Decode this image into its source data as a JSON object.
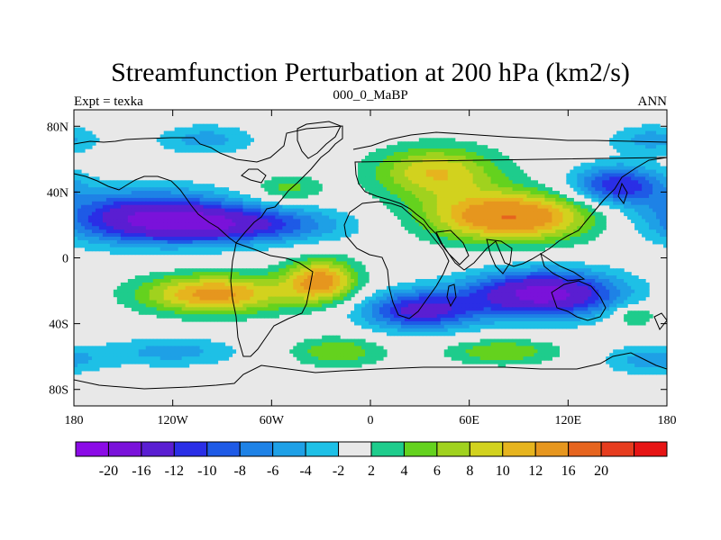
{
  "title": "Streamfunction Perturbation at 200 hPa (km2/s)",
  "left_string": "Expt = texka",
  "center_string": "000_0_MaBP",
  "right_string": "ANN",
  "y_ticks": [
    {
      "label": "80N",
      "lat": 80
    },
    {
      "label": "40N",
      "lat": 40
    },
    {
      "label": "0",
      "lat": 0
    },
    {
      "label": "40S",
      "lat": -40
    },
    {
      "label": "80S",
      "lat": -80
    }
  ],
  "x_ticks": [
    {
      "label": "180",
      "lon": -180
    },
    {
      "label": "120W",
      "lon": -120
    },
    {
      "label": "60W",
      "lon": -60
    },
    {
      "label": "0",
      "lon": 0
    },
    {
      "label": "60E",
      "lon": 60
    },
    {
      "label": "120E",
      "lon": 120
    },
    {
      "label": "180",
      "lon": 180
    }
  ],
  "colorbar": {
    "colors": [
      "#8b0be6",
      "#7a12da",
      "#5a1ed2",
      "#2a2ee6",
      "#1e5ae6",
      "#1e82e6",
      "#1ea0e6",
      "#1ec0e6",
      "#e8e8e8",
      "#1ecc8c",
      "#64d21e",
      "#a0d21e",
      "#d2d21e",
      "#e6b41e",
      "#e6961e",
      "#e6641e",
      "#e63c1e",
      "#e61414"
    ],
    "labels": [
      "-20",
      "-16",
      "-12",
      "-10",
      "-8",
      "-6",
      "-4",
      "-2",
      "2",
      "4",
      "6",
      "8",
      "10",
      "12",
      "16",
      "20"
    ]
  },
  "chart_data": {
    "type": "heatmap",
    "title": "Streamfunction Perturbation at 200 hPa (km2/s)",
    "projection": "cylindrical equidistant",
    "lon_range": [
      -180,
      180
    ],
    "lat_range": [
      -90,
      90
    ],
    "contour_levels": [
      -20,
      -16,
      -12,
      -10,
      -8,
      -6,
      -4,
      -2,
      2,
      4,
      6,
      8,
      10,
      12,
      16,
      20
    ],
    "features": [
      {
        "name": "north-pacific-low",
        "lon": -135,
        "lat": 25,
        "lon_radius": 55,
        "lat_radius": 16,
        "value": -14
      },
      {
        "name": "north-atlantic-low",
        "lon": -80,
        "lat": 20,
        "lon_radius": 60,
        "lat_radius": 11,
        "value": -11
      },
      {
        "name": "west-pacific-low",
        "lon": 150,
        "lat": 44,
        "lon_radius": 28,
        "lat_radius": 12,
        "value": -12
      },
      {
        "name": "asian-high",
        "lon": 85,
        "lat": 25,
        "lon_radius": 50,
        "lat_radius": 15,
        "value": 16
      },
      {
        "name": "eurasian-ridge",
        "lon": 40,
        "lat": 52,
        "lon_radius": 38,
        "lat_radius": 16,
        "value": 10
      },
      {
        "name": "south-pacific-high",
        "lon": -95,
        "lat": -22,
        "lon_radius": 45,
        "lat_radius": 12,
        "value": 13
      },
      {
        "name": "south-atlantic-high",
        "lon": -30,
        "lat": -14,
        "lon_radius": 22,
        "lat_radius": 13,
        "value": 13
      },
      {
        "name": "indian-ocean-low",
        "lon": 105,
        "lat": -22,
        "lon_radius": 45,
        "lat_radius": 14,
        "value": -18
      },
      {
        "name": "south-africa-low",
        "lon": 30,
        "lat": -32,
        "lon_radius": 35,
        "lat_radius": 12,
        "value": -13
      },
      {
        "name": "southern-ocean-high-1",
        "lon": -20,
        "lat": -57,
        "lon_radius": 28,
        "lat_radius": 9,
        "value": 6
      },
      {
        "name": "southern-ocean-high-2",
        "lon": 80,
        "lat": -57,
        "lon_radius": 35,
        "lat_radius": 8,
        "value": 6
      },
      {
        "name": "southern-ocean-low-1",
        "lon": -120,
        "lat": -57,
        "lon_radius": 40,
        "lat_radius": 9,
        "value": -5
      },
      {
        "name": "southern-ocean-low-2",
        "lon": 170,
        "lat": -62,
        "lon_radius": 30,
        "lat_radius": 9,
        "value": -5
      },
      {
        "name": "arctic-low-west",
        "lon": -100,
        "lat": 72,
        "lon_radius": 30,
        "lat_radius": 9,
        "value": -5
      },
      {
        "name": "arctic-low-east",
        "lon": 170,
        "lat": 72,
        "lon_radius": 25,
        "lat_radius": 9,
        "value": -5
      },
      {
        "name": "tropical-east-pacific-high",
        "lon": 160,
        "lat": -35,
        "lon_radius": 14,
        "lat_radius": 7,
        "value": 5
      },
      {
        "name": "north-atlantic-high",
        "lon": -50,
        "lat": 42,
        "lon_radius": 22,
        "lat_radius": 8,
        "value": 5
      }
    ]
  }
}
